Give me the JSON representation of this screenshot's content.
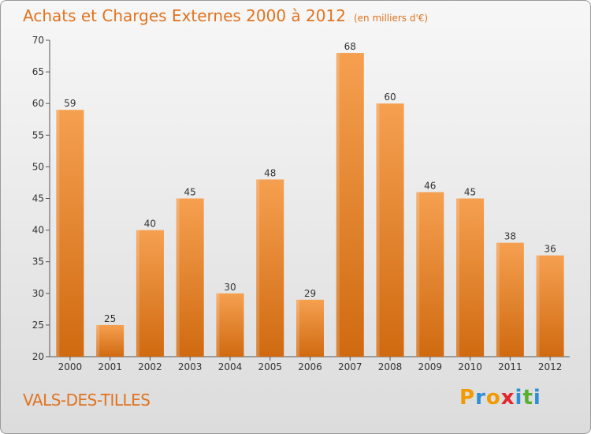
{
  "chart_data": {
    "type": "bar",
    "title": "Achats et Charges Externes 2000 à 2012",
    "subtitle": "(en milliers d'€)",
    "categories": [
      "2000",
      "2001",
      "2002",
      "2003",
      "2004",
      "2005",
      "2006",
      "2007",
      "2008",
      "2009",
      "2010",
      "2011",
      "2012"
    ],
    "values": [
      59,
      25,
      40,
      45,
      30,
      48,
      29,
      68,
      60,
      46,
      45,
      38,
      36
    ],
    "yticks": [
      20,
      25,
      30,
      35,
      40,
      45,
      50,
      55,
      60,
      65,
      70
    ],
    "ylim": [
      20,
      70
    ],
    "grid": false,
    "bar_color": "#f5a050",
    "bar_color_bottom": "#d06a10"
  },
  "footer": {
    "commune": "VALS-DES-TILLES",
    "logo": [
      "P",
      "r",
      "o",
      "x",
      "i",
      "t",
      "i"
    ],
    "logo_colors": [
      "#f29a00",
      "#2e8fd8",
      "#f29a00",
      "#e2262d",
      "#2e8fd8",
      "#56b030",
      "#2e8fd8"
    ]
  },
  "colors": {
    "accent": "#e0731f"
  }
}
